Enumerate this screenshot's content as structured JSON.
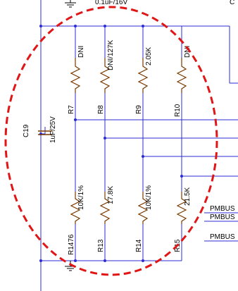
{
  "top_labels": {
    "cap_value_top": "0.1uF/16V",
    "corner_fragment": "C"
  },
  "capacitor": {
    "ref": "C19",
    "value": "1uF/25V"
  },
  "resistors_top": [
    {
      "ref": "R7",
      "value": "DNI"
    },
    {
      "ref": "R8",
      "value": "DNI/127K"
    },
    {
      "ref": "R9",
      "value": "2.05K"
    },
    {
      "ref": "R10",
      "value": "DNI"
    }
  ],
  "resistors_bottom": [
    {
      "ref": "R1476",
      "value": "10K/1%"
    },
    {
      "ref": "R13",
      "value": "17.8K"
    },
    {
      "ref": "R14",
      "value": "10K/1%"
    },
    {
      "ref": "R15",
      "value": "21.5K"
    }
  ],
  "net_labels": [
    "PMBUS",
    "PMBUS",
    "PMBUS"
  ],
  "colors": {
    "wire": "#2b2bd6",
    "resistor": "#7a3a00",
    "highlight": "#e01515",
    "text": "#000000"
  }
}
